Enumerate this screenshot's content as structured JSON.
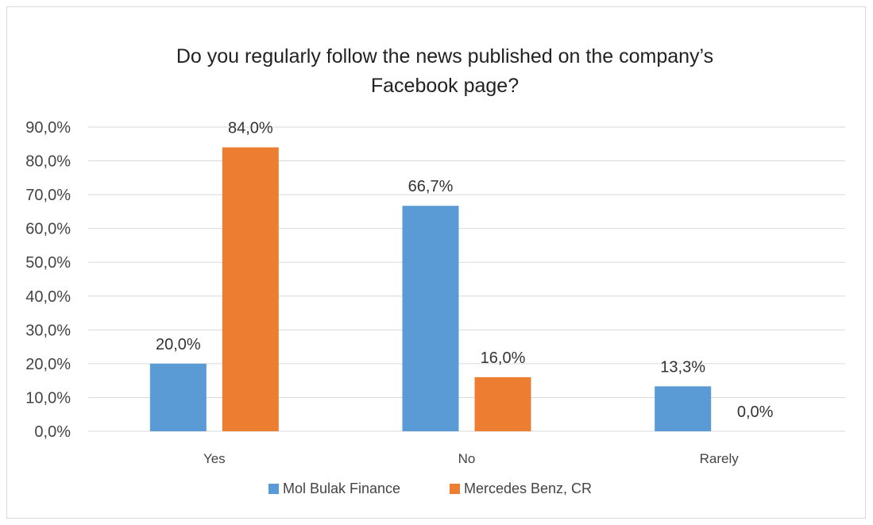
{
  "chart_data": {
    "type": "bar",
    "title": "Do you regularly follow the news published on the company’s Facebook page?",
    "title_lines": [
      "Do you regularly follow the news published on the company’s",
      "Facebook page?"
    ],
    "categories": [
      "Yes",
      "No",
      "Rarely"
    ],
    "series": [
      {
        "name": "Mol Bulak Finance",
        "values": [
          20.0,
          66.7,
          13.3
        ],
        "labels": [
          "20,0%",
          "66,7%",
          "13,3%"
        ],
        "color": "#5b9bd5"
      },
      {
        "name": "Mercedes Benz, CR",
        "values": [
          84.0,
          16.0,
          0.0
        ],
        "labels": [
          "84,0%",
          "16,0%",
          "0,0%"
        ],
        "color": "#ed7d31"
      }
    ],
    "ylim": [
      0,
      90
    ],
    "yticks": [
      0,
      10,
      20,
      30,
      40,
      50,
      60,
      70,
      80,
      90
    ],
    "ytick_labels": [
      "0,0%",
      "10,0%",
      "20,0%",
      "30,0%",
      "40,0%",
      "50,0%",
      "60,0%",
      "70,0%",
      "80,0%",
      "90,0%"
    ],
    "xlabel": "",
    "ylabel": "",
    "grid": true,
    "legend_position": "bottom",
    "gridline_color": "#d9d9d9"
  }
}
